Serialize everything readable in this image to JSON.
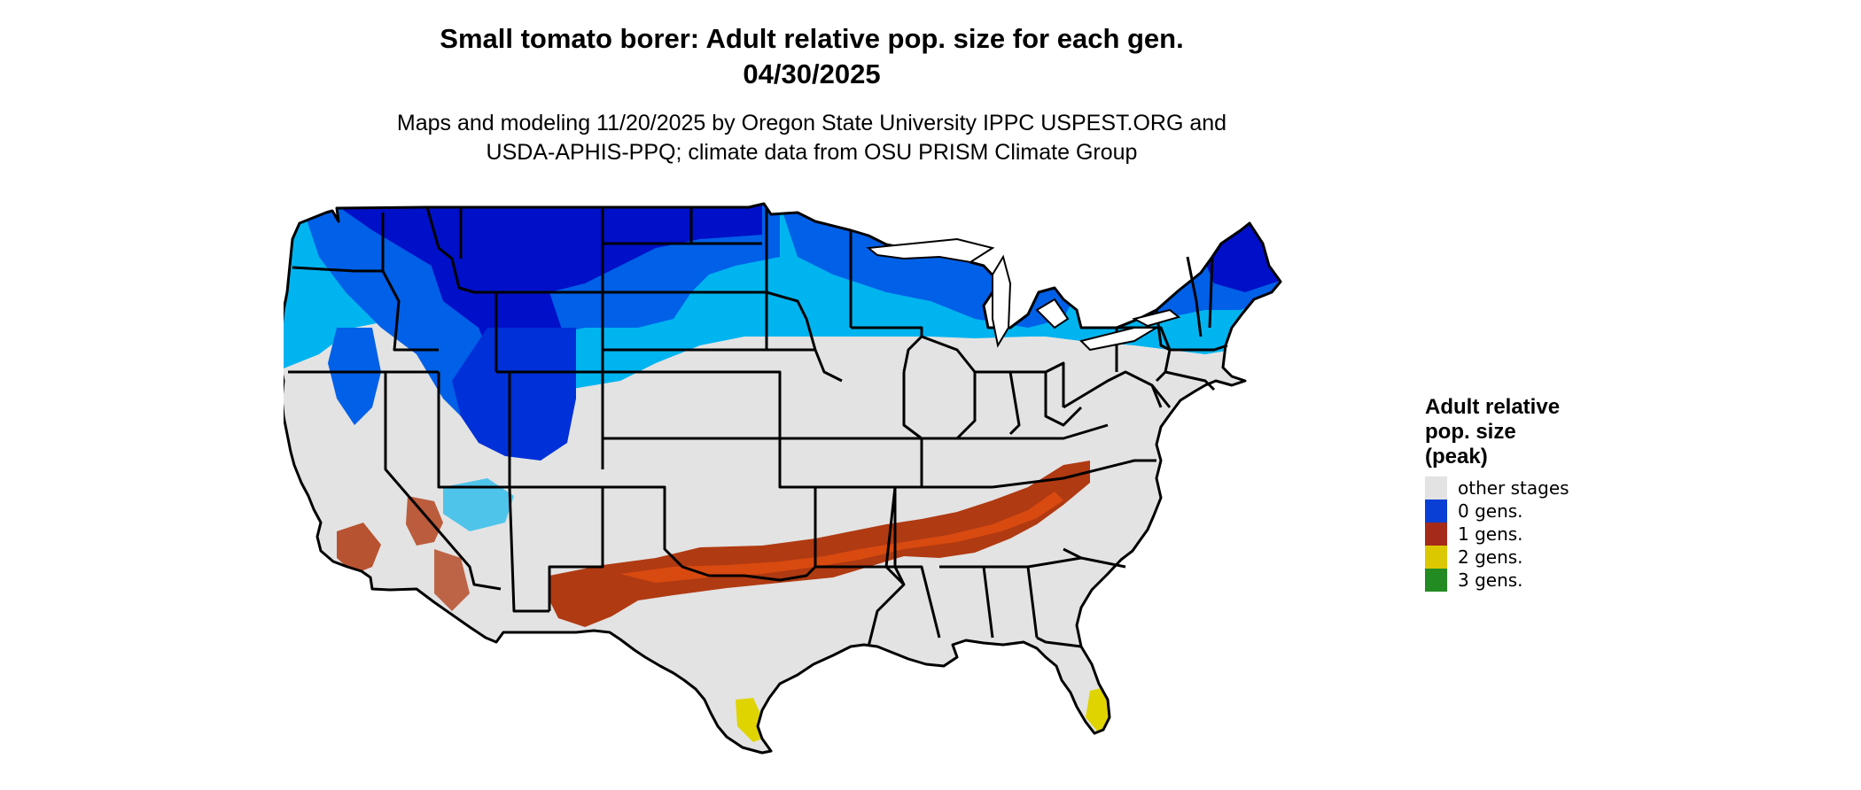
{
  "title": {
    "line1": "Small tomato borer: Adult relative pop. size for each gen.",
    "line2": "04/30/2025"
  },
  "subtitle": {
    "line1": "Maps and modeling 11/20/2025 by Oregon State University IPPC USPEST.ORG and",
    "line2": "USDA-APHIS-PPQ; climate data from OSU PRISM Climate Group"
  },
  "map": {
    "region": "Conterminous United States",
    "background_class": "other stages",
    "state_border_color": "#000000"
  },
  "legend": {
    "title_lines": [
      "Adult relative",
      "pop. size",
      "(peak)"
    ],
    "items": [
      {
        "label": "other stages",
        "color": "#e3e3e3"
      },
      {
        "label": "0 gens.",
        "color": "#0a3fd6"
      },
      {
        "label": "1 gens.",
        "color": "#a52a1a"
      },
      {
        "label": "2 gens.",
        "color": "#dcc800"
      },
      {
        "label": "3 gens.",
        "color": "#228b22"
      }
    ]
  },
  "colors": {
    "zero_gen_dark": "#0010c8",
    "zero_gen_mid": "#0060e8",
    "zero_gen_light": "#00b4f0",
    "one_gen_dark": "#b03a12",
    "one_gen_bright": "#d84a10",
    "two_gen": "#e0d400",
    "other": "#e3e3e3"
  }
}
